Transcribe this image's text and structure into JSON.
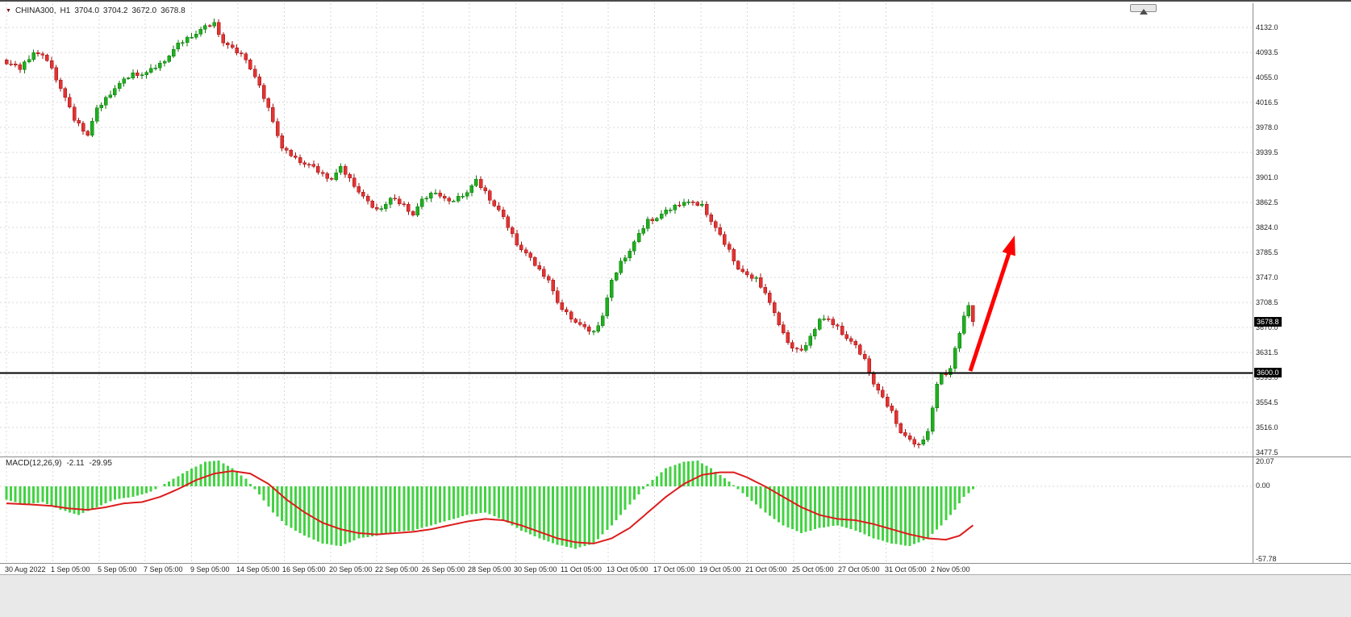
{
  "header": {
    "symbol": "CHINA300,",
    "timeframe": "H1",
    "open": "3704.0",
    "high": "3704.2",
    "low": "3672.0",
    "close": "3678.8"
  },
  "price_axis": {
    "ticks": [
      "4132.0",
      "4093.5",
      "4055.0",
      "4016.5",
      "3978.0",
      "3939.5",
      "3901.0",
      "3862.5",
      "3824.0",
      "3785.5",
      "3747.0",
      "3708.5",
      "3670.0",
      "3631.5",
      "3593.0",
      "3554.5",
      "3516.0",
      "3477.5"
    ],
    "step": 38.5,
    "current_badge": "3678.8",
    "hline_badge": "3600.0"
  },
  "time_axis": {
    "labels": [
      "30 Aug 2022",
      "1 Sep 05:00",
      "5 Sep 05:00",
      "7 Sep 05:00",
      "9 Sep 05:00",
      "14 Sep 05:00",
      "16 Sep 05:00",
      "20 Sep 05:00",
      "22 Sep 05:00",
      "26 Sep 05:00",
      "28 Sep 05:00",
      "30 Sep 05:00",
      "11 Oct 05:00",
      "13 Oct 05:00",
      "17 Oct 05:00",
      "19 Oct 05:00",
      "21 Oct 05:00",
      "25 Oct 05:00",
      "27 Oct 05:00",
      "31 Oct 05:00",
      "2 Nov 05:00"
    ]
  },
  "macd_panel": {
    "label": "MACD(12,26,9)",
    "main_value": "-2.11",
    "signal_value": "-29.95",
    "axis_ticks": [
      "20.07",
      "0.00",
      "-57.78"
    ],
    "axis_max": 20.07,
    "axis_min": -57.78
  },
  "colors": {
    "bull": "#1fae1f",
    "bull_dark": "#0b7a0b",
    "bear": "#e23333",
    "bear_dark": "#a31111",
    "macd_histogram": "#43d243",
    "macd_signal": "#dd1c1c",
    "grid": "#d9d9d9",
    "hline": "#000000",
    "badge_bg": "#000000",
    "arrow": "#fe0000"
  },
  "chart_data": {
    "type": "candlestick",
    "symbol": "CHINA300",
    "timeframe": "H1",
    "candle_count": 215,
    "y_axis_range": [
      3477.5,
      4132.0
    ],
    "x_axis_labels": [
      "30 Aug 2022",
      "1 Sep 05:00",
      "5 Sep 05:00",
      "7 Sep 05:00",
      "9 Sep 05:00",
      "14 Sep 05:00",
      "16 Sep 05:00",
      "20 Sep 05:00",
      "22 Sep 05:00",
      "26 Sep 05:00",
      "28 Sep 05:00",
      "30 Sep 05:00",
      "11 Oct 05:00",
      "13 Oct 05:00",
      "17 Oct 05:00",
      "19 Oct 05:00",
      "21 Oct 05:00",
      "25 Oct 05:00",
      "27 Oct 05:00",
      "31 Oct 05:00",
      "2 Nov 05:00"
    ],
    "current_price": 3678.8,
    "hline_price": 3600.0,
    "last_candle": {
      "open": 3704.0,
      "high": 3704.2,
      "low": 3672.0,
      "close": 3678.8
    },
    "price_waypoints": [
      [
        0,
        4078
      ],
      [
        3,
        4068
      ],
      [
        6,
        4095
      ],
      [
        9,
        4082
      ],
      [
        12,
        4040
      ],
      [
        15,
        3990
      ],
      [
        18,
        3968
      ],
      [
        20,
        4005
      ],
      [
        24,
        4040
      ],
      [
        28,
        4060
      ],
      [
        31,
        4062
      ],
      [
        34,
        4075
      ],
      [
        38,
        4105
      ],
      [
        41,
        4120
      ],
      [
        44,
        4132
      ],
      [
        46,
        4138
      ],
      [
        48,
        4110
      ],
      [
        50,
        4098
      ],
      [
        53,
        4085
      ],
      [
        56,
        4040
      ],
      [
        59,
        3990
      ],
      [
        61,
        3945
      ],
      [
        64,
        3930
      ],
      [
        67,
        3920
      ],
      [
        70,
        3905
      ],
      [
        72,
        3900
      ],
      [
        74,
        3915
      ],
      [
        77,
        3890
      ],
      [
        80,
        3862
      ],
      [
        82,
        3850
      ],
      [
        85,
        3868
      ],
      [
        88,
        3858
      ],
      [
        90,
        3845
      ],
      [
        92,
        3865
      ],
      [
        95,
        3880
      ],
      [
        98,
        3862
      ],
      [
        100,
        3870
      ],
      [
        102,
        3880
      ],
      [
        104,
        3895
      ],
      [
        106,
        3878
      ],
      [
        109,
        3850
      ],
      [
        111,
        3825
      ],
      [
        113,
        3800
      ],
      [
        116,
        3775
      ],
      [
        118,
        3758
      ],
      [
        120,
        3745
      ],
      [
        122,
        3705
      ],
      [
        124,
        3692
      ],
      [
        126,
        3680
      ],
      [
        128,
        3668
      ],
      [
        130,
        3662
      ],
      [
        132,
        3690
      ],
      [
        134,
        3740
      ],
      [
        136,
        3770
      ],
      [
        138,
        3790
      ],
      [
        140,
        3812
      ],
      [
        142,
        3835
      ],
      [
        144,
        3840
      ],
      [
        147,
        3852
      ],
      [
        150,
        3865
      ],
      [
        152,
        3860
      ],
      [
        154,
        3858
      ],
      [
        156,
        3835
      ],
      [
        158,
        3810
      ],
      [
        160,
        3788
      ],
      [
        162,
        3762
      ],
      [
        164,
        3748
      ],
      [
        166,
        3745
      ],
      [
        168,
        3725
      ],
      [
        170,
        3690
      ],
      [
        172,
        3660
      ],
      [
        174,
        3640
      ],
      [
        176,
        3632
      ],
      [
        178,
        3655
      ],
      [
        180,
        3685
      ],
      [
        182,
        3680
      ],
      [
        184,
        3670
      ],
      [
        186,
        3655
      ],
      [
        188,
        3640
      ],
      [
        190,
        3620
      ],
      [
        192,
        3585
      ],
      [
        194,
        3560
      ],
      [
        196,
        3540
      ],
      [
        198,
        3510
      ],
      [
        200,
        3495
      ],
      [
        202,
        3488
      ],
      [
        204,
        3512
      ],
      [
        205,
        3545
      ],
      [
        206,
        3580
      ],
      [
        207,
        3600
      ],
      [
        208,
        3595
      ],
      [
        209,
        3610
      ],
      [
        210,
        3640
      ],
      [
        211,
        3660
      ],
      [
        212,
        3685
      ],
      [
        213,
        3705
      ],
      [
        214,
        3679
      ]
    ],
    "macd": {
      "type": "bar+line",
      "label": "MACD(12,26,9)",
      "last_main": -2.11,
      "last_signal": -29.95,
      "axis_range": [
        -57.78,
        20.07
      ],
      "histogram_waypoints": [
        [
          0,
          -10
        ],
        [
          4,
          -14
        ],
        [
          8,
          -12
        ],
        [
          12,
          -18
        ],
        [
          16,
          -22
        ],
        [
          20,
          -16
        ],
        [
          24,
          -10
        ],
        [
          28,
          -8
        ],
        [
          32,
          -4
        ],
        [
          36,
          4
        ],
        [
          40,
          12
        ],
        [
          44,
          19
        ],
        [
          47,
          20
        ],
        [
          50,
          14
        ],
        [
          53,
          6
        ],
        [
          56,
          -6
        ],
        [
          59,
          -20
        ],
        [
          62,
          -30
        ],
        [
          66,
          -38
        ],
        [
          70,
          -44
        ],
        [
          74,
          -46
        ],
        [
          78,
          -40
        ],
        [
          82,
          -38
        ],
        [
          86,
          -35
        ],
        [
          90,
          -34
        ],
        [
          94,
          -30
        ],
        [
          98,
          -26
        ],
        [
          102,
          -22
        ],
        [
          106,
          -20
        ],
        [
          110,
          -26
        ],
        [
          114,
          -34
        ],
        [
          118,
          -40
        ],
        [
          122,
          -45
        ],
        [
          126,
          -48
        ],
        [
          130,
          -44
        ],
        [
          134,
          -30
        ],
        [
          138,
          -14
        ],
        [
          142,
          2
        ],
        [
          146,
          14
        ],
        [
          150,
          19
        ],
        [
          153,
          20
        ],
        [
          156,
          14
        ],
        [
          160,
          4
        ],
        [
          164,
          -8
        ],
        [
          168,
          -20
        ],
        [
          172,
          -30
        ],
        [
          176,
          -36
        ],
        [
          180,
          -32
        ],
        [
          184,
          -30
        ],
        [
          188,
          -34
        ],
        [
          192,
          -40
        ],
        [
          196,
          -44
        ],
        [
          200,
          -46
        ],
        [
          204,
          -40
        ],
        [
          207,
          -30
        ],
        [
          210,
          -18
        ],
        [
          212,
          -8
        ],
        [
          214,
          -2.11
        ]
      ],
      "signal_waypoints": [
        [
          0,
          -13
        ],
        [
          6,
          -14
        ],
        [
          10,
          -15
        ],
        [
          14,
          -17
        ],
        [
          18,
          -18
        ],
        [
          22,
          -16
        ],
        [
          26,
          -13
        ],
        [
          30,
          -12
        ],
        [
          34,
          -8
        ],
        [
          38,
          -2
        ],
        [
          42,
          5
        ],
        [
          46,
          10
        ],
        [
          50,
          12
        ],
        [
          54,
          10
        ],
        [
          58,
          2
        ],
        [
          62,
          -10
        ],
        [
          66,
          -20
        ],
        [
          70,
          -28
        ],
        [
          74,
          -33
        ],
        [
          78,
          -36
        ],
        [
          82,
          -37
        ],
        [
          86,
          -36
        ],
        [
          90,
          -35
        ],
        [
          94,
          -33
        ],
        [
          98,
          -30
        ],
        [
          102,
          -27
        ],
        [
          106,
          -25
        ],
        [
          110,
          -26
        ],
        [
          114,
          -30
        ],
        [
          118,
          -35
        ],
        [
          122,
          -40
        ],
        [
          126,
          -43
        ],
        [
          130,
          -44
        ],
        [
          134,
          -40
        ],
        [
          138,
          -32
        ],
        [
          142,
          -20
        ],
        [
          146,
          -8
        ],
        [
          150,
          2
        ],
        [
          154,
          9
        ],
        [
          158,
          11
        ],
        [
          161,
          11
        ],
        [
          164,
          7
        ],
        [
          168,
          0
        ],
        [
          172,
          -8
        ],
        [
          176,
          -16
        ],
        [
          180,
          -22
        ],
        [
          184,
          -25
        ],
        [
          188,
          -26
        ],
        [
          192,
          -29
        ],
        [
          196,
          -33
        ],
        [
          200,
          -37
        ],
        [
          204,
          -40
        ],
        [
          208,
          -41
        ],
        [
          211,
          -38
        ],
        [
          214,
          -29.95
        ]
      ]
    }
  },
  "annotations": {
    "trend_arrow": {
      "color": "#fe0000",
      "direction": "up-right"
    }
  }
}
